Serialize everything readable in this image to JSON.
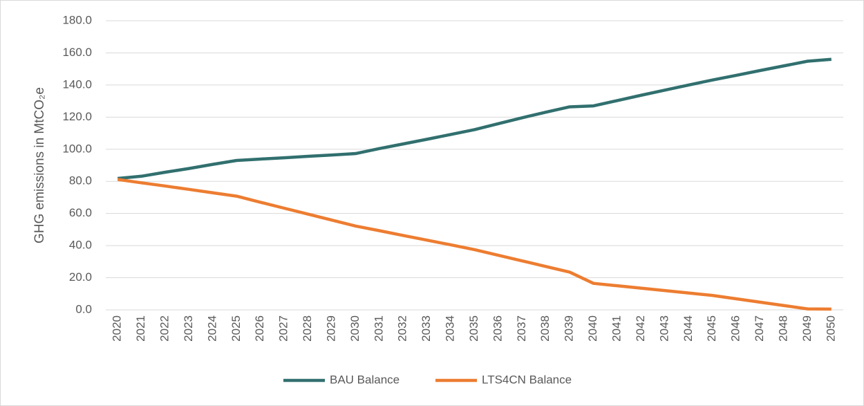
{
  "chart_data": {
    "type": "line",
    "categories": [
      "2020",
      "2021",
      "2022",
      "2023",
      "2024",
      "2025",
      "2026",
      "2027",
      "2028",
      "2029",
      "2030",
      "2031",
      "2032",
      "2033",
      "2034",
      "2035",
      "2036",
      "2037",
      "2038",
      "2039",
      "2040",
      "2041",
      "2042",
      "2043",
      "2044",
      "2045",
      "2046",
      "2047",
      "2048",
      "2049",
      "2050"
    ],
    "series": [
      {
        "name": "BAU Balance",
        "color": "#31706f",
        "values": [
          81.8,
          83.2,
          85.7,
          88.0,
          90.6,
          93.0,
          93.9,
          94.7,
          95.6,
          96.4,
          97.3,
          100.4,
          103.3,
          106.2,
          109.2,
          112.2,
          115.9,
          119.6,
          123.1,
          126.4,
          127.0,
          130.3,
          133.6,
          136.8,
          140.0,
          143.1,
          146.0,
          149.0,
          151.9,
          154.8,
          156.0
        ]
      },
      {
        "name": "LTS4CN Balance",
        "color": "#ed7d31",
        "values": [
          81.2,
          79.1,
          77.1,
          75.0,
          72.9,
          70.8,
          67.0,
          63.3,
          59.6,
          55.9,
          52.2,
          49.3,
          46.3,
          43.4,
          40.5,
          37.5,
          34.0,
          30.5,
          27.0,
          23.5,
          16.5,
          15.0,
          13.5,
          12.0,
          10.5,
          9.0,
          6.9,
          4.8,
          2.7,
          0.6,
          0.5
        ]
      }
    ],
    "ylabel": "GHG emissions in MtCO₂e",
    "ylim": [
      0,
      180
    ],
    "yticks": [
      {
        "value": 0,
        "label": "0.0"
      },
      {
        "value": 20,
        "label": "20.0"
      },
      {
        "value": 40,
        "label": "40.0"
      },
      {
        "value": 60,
        "label": "60.0"
      },
      {
        "value": 80,
        "label": "80.0"
      },
      {
        "value": 100,
        "label": "100.0"
      },
      {
        "value": 120,
        "label": "120.0"
      },
      {
        "value": 140,
        "label": "140.0"
      },
      {
        "value": 160,
        "label": "160.0"
      },
      {
        "value": 180,
        "label": "180.0"
      }
    ],
    "grid": true,
    "legend": "bottom"
  }
}
